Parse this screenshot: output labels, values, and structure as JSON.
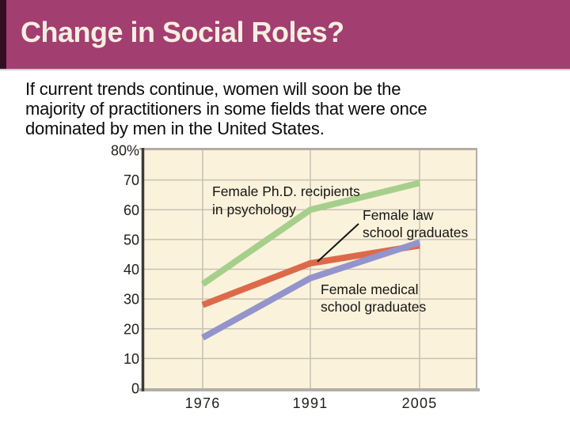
{
  "slide": {
    "title": "Change in Social Roles?",
    "body_lines": [
      "If current trends continue, women will soon be the",
      "majority of practitioners in some fields that were once",
      "dominated by men in the United States."
    ]
  },
  "colors": {
    "header_bg": "#a33e71",
    "header_accent": "#330e21",
    "title_text": "#f7efe1",
    "body_text": "#0b0b0b",
    "plot_bg": "#fbf2dc",
    "grid": "#c8c2b4",
    "frame": "#b3aea4",
    "axis": "#3e3b36",
    "tick_text": "#22201d",
    "annotation_text": "#161513",
    "pointer_line": "#161513"
  },
  "chart_data": {
    "type": "line",
    "categories": [
      "1976",
      "1991",
      "2005"
    ],
    "series": [
      {
        "name": "Female Ph.D. recipients in psychology",
        "color": "#a6cf8c",
        "values": [
          35,
          60,
          69
        ]
      },
      {
        "name": "Female law school graduates",
        "color": "#dc6a4a",
        "values": [
          28,
          42,
          48
        ]
      },
      {
        "name": "Female medical school graduates",
        "color": "#9394cb",
        "values": [
          17,
          37,
          49
        ]
      }
    ],
    "ylim": [
      0,
      80
    ],
    "yticks": [
      {
        "value": 80,
        "label": "80%"
      },
      {
        "value": 70,
        "label": "70"
      },
      {
        "value": 60,
        "label": "60"
      },
      {
        "value": 50,
        "label": "50"
      },
      {
        "value": 40,
        "label": "40"
      },
      {
        "value": 30,
        "label": "30"
      },
      {
        "value": 20,
        "label": "20"
      },
      {
        "value": 10,
        "label": "10"
      },
      {
        "value": 0,
        "label": "0"
      }
    ],
    "xtick_labels": [
      "1976",
      "1991",
      "2005"
    ],
    "grid": true,
    "legend": "inline-annotations",
    "annotations": [
      {
        "lines": [
          "Female Ph.D. recipients",
          "in psychology"
        ]
      },
      {
        "lines": [
          "Female law",
          "school graduates"
        ]
      },
      {
        "lines": [
          "Female medical",
          "school graduates"
        ]
      }
    ]
  }
}
